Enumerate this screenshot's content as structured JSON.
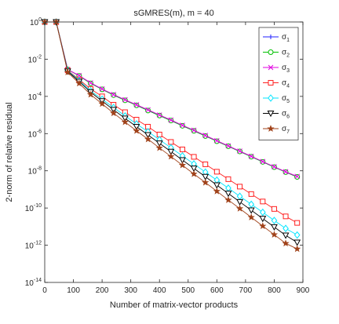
{
  "chart_data": {
    "type": "line",
    "title": "sGMRES(m), m = 40",
    "xlabel": "Number of matrix-vector products",
    "ylabel": "2-norm of relative residual",
    "xlim": [
      0,
      900
    ],
    "ylim_exponent": [
      -14,
      0
    ],
    "yscale": "log",
    "x_ticks": [
      0,
      100,
      200,
      300,
      400,
      500,
      600,
      700,
      800,
      900
    ],
    "x_tick_labels": [
      "0",
      "100",
      "200",
      "300",
      "400",
      "500",
      "600",
      "700",
      "800",
      "900"
    ],
    "y_tick_exponents": [
      0,
      -2,
      -4,
      -6,
      -8,
      -10,
      -12,
      -14
    ],
    "y_tick_base": "10",
    "y_tick_exponent_labels": [
      "0",
      "-2",
      "-4",
      "-6",
      "-8",
      "-10",
      "-12",
      "-14"
    ],
    "legend_position": "top-right",
    "grid": false,
    "x": [
      0,
      40,
      80,
      120,
      160,
      200,
      240,
      280,
      320,
      360,
      400,
      440,
      480,
      520,
      560,
      600,
      640,
      680,
      720,
      760,
      800,
      840,
      880
    ],
    "series": [
      {
        "name": "σ1",
        "legend_symbol": "σ",
        "legend_subscript": "1",
        "color": "#1f1fff",
        "marker": "plus",
        "log10_values": [
          0,
          0,
          -2.55,
          -2.9,
          -3.3,
          -3.62,
          -3.93,
          -4.21,
          -4.48,
          -4.76,
          -5.03,
          -5.3,
          -5.58,
          -5.85,
          -6.13,
          -6.41,
          -6.68,
          -6.96,
          -7.24,
          -7.52,
          -7.8,
          -8.07,
          -8.33
        ]
      },
      {
        "name": "σ2",
        "legend_symbol": "σ",
        "legend_subscript": "2",
        "color": "#00c000",
        "marker": "circle",
        "log10_values": [
          0,
          0,
          -2.55,
          -2.9,
          -3.3,
          -3.62,
          -3.93,
          -4.21,
          -4.48,
          -4.76,
          -5.03,
          -5.3,
          -5.58,
          -5.85,
          -6.13,
          -6.41,
          -6.68,
          -6.96,
          -7.24,
          -7.52,
          -7.8,
          -8.07,
          -8.33
        ]
      },
      {
        "name": "σ3",
        "legend_symbol": "σ",
        "legend_subscript": "3",
        "color": "#e000e0",
        "marker": "x",
        "log10_values": [
          0,
          0,
          -2.55,
          -2.88,
          -3.27,
          -3.6,
          -3.9,
          -4.18,
          -4.45,
          -4.72,
          -5.0,
          -5.27,
          -5.55,
          -5.82,
          -6.1,
          -6.38,
          -6.66,
          -6.94,
          -7.22,
          -7.5,
          -7.78,
          -8.05,
          -8.3
        ]
      },
      {
        "name": "σ4",
        "legend_symbol": "σ",
        "legend_subscript": "4",
        "color": "#ff2020",
        "marker": "square",
        "log10_values": [
          0,
          0,
          -2.6,
          -3.1,
          -3.6,
          -4.0,
          -4.45,
          -4.85,
          -5.25,
          -5.63,
          -6.05,
          -6.45,
          -6.85,
          -7.25,
          -7.65,
          -8.05,
          -8.45,
          -8.85,
          -9.25,
          -9.65,
          -10.05,
          -10.45,
          -10.8
        ]
      },
      {
        "name": "σ5",
        "legend_symbol": "σ",
        "legend_subscript": "5",
        "color": "#00e5ff",
        "marker": "diamond",
        "log10_values": [
          0,
          0,
          -2.62,
          -3.15,
          -3.7,
          -4.15,
          -4.6,
          -5.05,
          -5.48,
          -5.9,
          -6.33,
          -6.76,
          -7.2,
          -7.63,
          -8.07,
          -8.5,
          -8.93,
          -9.37,
          -9.8,
          -10.23,
          -10.67,
          -11.1,
          -11.45
        ]
      },
      {
        "name": "σ6",
        "legend_symbol": "σ",
        "legend_subscript": "6",
        "color": "#000000",
        "marker": "triangle-down",
        "log10_values": [
          0,
          0,
          -2.65,
          -3.2,
          -3.77,
          -4.25,
          -4.72,
          -5.18,
          -5.63,
          -6.07,
          -6.52,
          -6.97,
          -7.42,
          -7.87,
          -8.32,
          -8.77,
          -9.22,
          -9.67,
          -10.12,
          -10.57,
          -11.02,
          -11.47,
          -11.85
        ]
      },
      {
        "name": "σ7",
        "legend_symbol": "σ",
        "legend_subscript": "7",
        "color": "#a0421a",
        "marker": "star",
        "log10_values": [
          0,
          0,
          -2.7,
          -3.3,
          -3.9,
          -4.4,
          -4.9,
          -5.38,
          -5.85,
          -6.3,
          -6.77,
          -7.23,
          -7.7,
          -8.17,
          -8.63,
          -9.1,
          -9.57,
          -10.03,
          -10.5,
          -10.97,
          -11.43,
          -11.9,
          -12.2
        ]
      }
    ]
  }
}
